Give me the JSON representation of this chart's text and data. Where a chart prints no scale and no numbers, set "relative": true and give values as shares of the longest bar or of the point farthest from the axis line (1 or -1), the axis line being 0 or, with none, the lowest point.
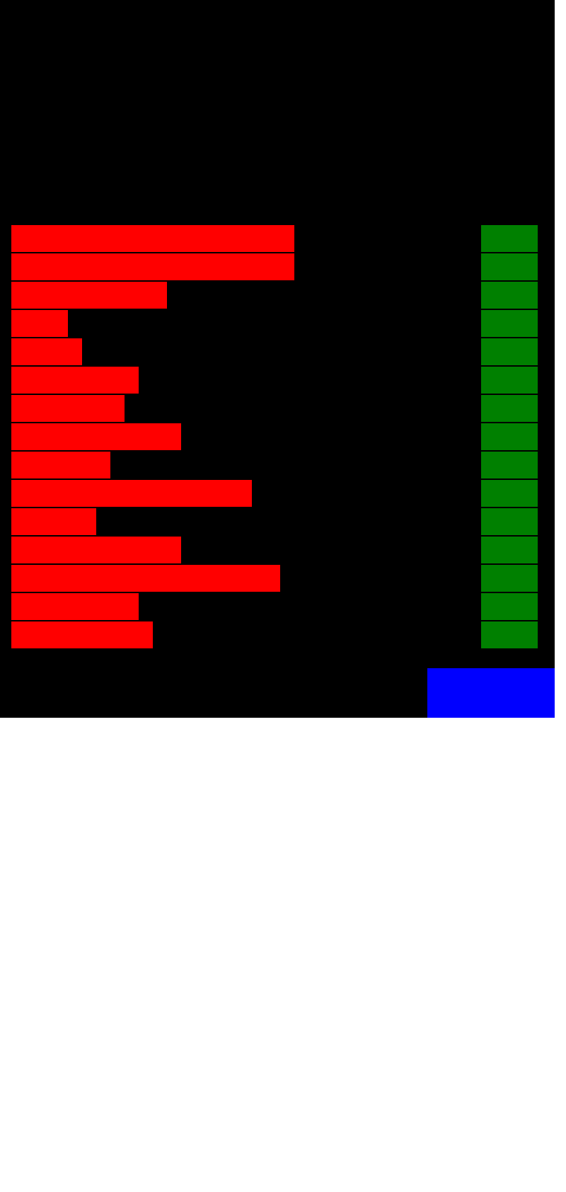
{
  "chart_data": [
    {
      "type": "bar",
      "orientation": "horizontal",
      "relative": true,
      "categories": [
        null,
        null,
        null,
        null,
        null,
        null,
        null,
        null,
        null,
        null,
        null,
        null,
        null,
        null,
        null
      ],
      "values": [
        1,
        1,
        0.55,
        0.2,
        0.25,
        0.45,
        0.4,
        0.6,
        0.35,
        0.85,
        0.3,
        0.6,
        0.95,
        0.45,
        0.5
      ],
      "color": "#ff0000"
    },
    {
      "type": "bar",
      "orientation": "horizontal",
      "relative": true,
      "categories": [
        null,
        null,
        null,
        null,
        null,
        null,
        null,
        null,
        null,
        null,
        null,
        null,
        null,
        null,
        null
      ],
      "values": [
        1,
        1,
        1,
        1,
        1,
        1,
        1,
        1,
        1,
        1,
        1,
        1,
        1,
        1,
        1
      ],
      "color": "#008000"
    }
  ]
}
